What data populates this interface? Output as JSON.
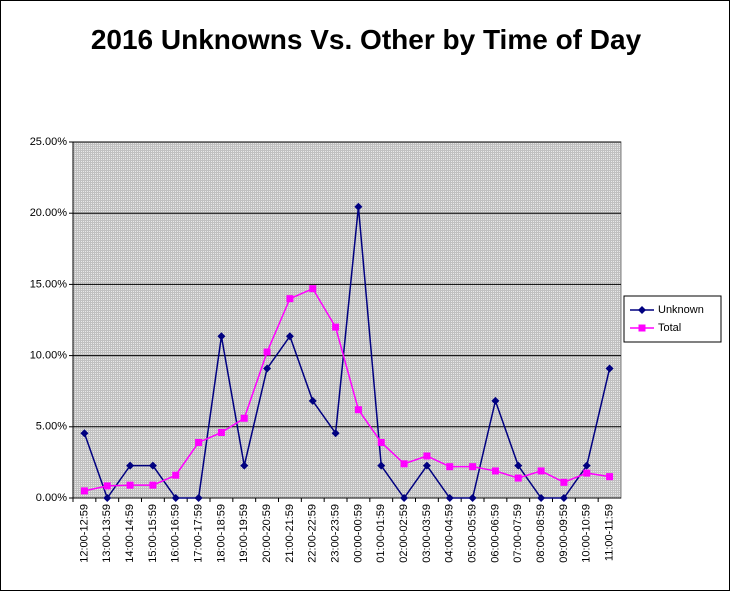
{
  "chart_data": {
    "type": "line",
    "title": "2016 Unknowns Vs. Other by Time of Day",
    "categories": [
      "12:00-12:59",
      "13:00-13:59",
      "14:00-14:59",
      "15:00-15:59",
      "16:00-16:59",
      "17:00-17:59",
      "18:00-18:59",
      "19:00-19:59",
      "20:00-20:59",
      "21:00-21:59",
      "22:00-22:59",
      "23:00-23:59",
      "00:00-00:59",
      "01:00-01:59",
      "02:00-02:59",
      "03:00-03:59",
      "04:00-04:59",
      "05:00-05:59",
      "06:00-06:59",
      "07:00-07:59",
      "08:00-08:59",
      "09:00-09:59",
      "10:00-10:59",
      "11:00-11:59"
    ],
    "series": [
      {
        "name": "Unknown",
        "color": "#000080",
        "marker": "diamond",
        "values": [
          4.55,
          0,
          2.27,
          2.27,
          0,
          0,
          11.36,
          2.27,
          9.09,
          11.36,
          6.82,
          4.55,
          20.45,
          2.27,
          0,
          2.27,
          0,
          0,
          6.82,
          2.27,
          0,
          0,
          2.27,
          9.09
        ]
      },
      {
        "name": "Total",
        "color": "#ff00ff",
        "marker": "square",
        "values": [
          0.5,
          0.85,
          0.9,
          0.9,
          1.6,
          3.9,
          4.6,
          5.6,
          10.25,
          14.0,
          14.7,
          12.0,
          6.2,
          3.9,
          2.4,
          2.95,
          2.2,
          2.2,
          1.9,
          1.4,
          1.9,
          1.1,
          1.75,
          1.5
        ]
      }
    ],
    "ylim": [
      0,
      25
    ],
    "yticks": [
      {
        "value": 0,
        "label": "0.00%"
      },
      {
        "value": 5,
        "label": "5.00%"
      },
      {
        "value": 10,
        "label": "10.00%"
      },
      {
        "value": 15,
        "label": "15.00%"
      },
      {
        "value": 20,
        "label": "20.00%"
      },
      {
        "value": 25,
        "label": "25.00%"
      }
    ],
    "grid": true,
    "legend": "right"
  }
}
